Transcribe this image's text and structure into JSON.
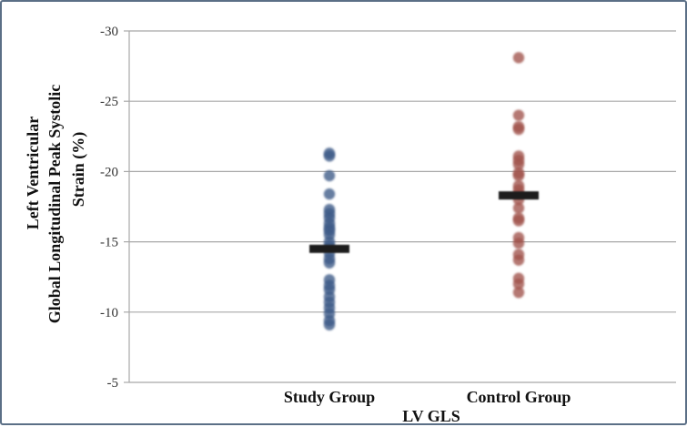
{
  "chart_data": {
    "type": "scatter",
    "xlabel": "LV GLS",
    "ylabel_lines": [
      "Left Ventricular",
      "Global Longitudinal Peak Systolic",
      "Strain (%)"
    ],
    "categories": [
      "Study Group",
      "Control Group"
    ],
    "y_axis": {
      "min": -30,
      "max": -5,
      "reversed": true,
      "ticks": [
        "-30",
        "-25",
        "-20",
        "-15",
        "-10",
        "-5"
      ],
      "tick_values": [
        -30,
        -25,
        -20,
        -15,
        -10,
        -5
      ]
    },
    "grid": true,
    "series": [
      {
        "color": "#3d5a87",
        "values": [
          -21.3,
          -21.1,
          -19.7,
          -18.4,
          -17.3,
          -17.0,
          -16.7,
          -16.3,
          -16.0,
          -15.8,
          -15.5,
          -15.0,
          -14.7,
          -14.2,
          -13.8,
          -13.5,
          -12.3,
          -11.9,
          -11.6,
          -11.1,
          -10.7,
          -10.3,
          -9.9,
          -9.4,
          -9.1
        ],
        "mean": -14.5
      },
      {
        "color": "#a0524a",
        "values": [
          -28.1,
          -24.0,
          -23.2,
          -23.0,
          -21.1,
          -20.8,
          -20.5,
          -19.9,
          -19.7,
          -19.0,
          -18.7,
          -18.4,
          -18.0,
          -17.4,
          -16.7,
          -16.5,
          -15.3,
          -14.9,
          -14.1,
          -13.7,
          -12.4,
          -12.0,
          -11.4
        ],
        "mean": -18.3
      }
    ],
    "mean_marker_color": "#1a1a1a"
  }
}
